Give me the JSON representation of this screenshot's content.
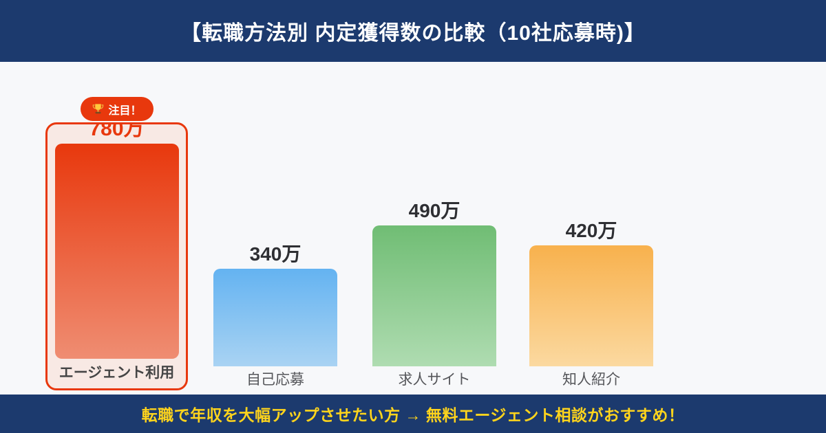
{
  "header": {
    "title": "【転職方法別 内定獲得数の比較（10社応募時)】"
  },
  "highlight": {
    "badge_icon": "trophy",
    "badge_label": "注目！",
    "highlighted_category": "エージェント利用"
  },
  "chart_data": {
    "type": "bar",
    "title": "【転職方法別 内定獲得数の比較（10社応募時)】",
    "categories": [
      "エージェント利用",
      "自己応募",
      "求人サイト",
      "知人紹介"
    ],
    "values": [
      780,
      340,
      490,
      420
    ],
    "value_labels": [
      "780万",
      "340万",
      "490万",
      "420万"
    ],
    "unit": "万",
    "ylim": [
      0,
      800
    ],
    "grid": false,
    "legend": "none",
    "axes_visible": false,
    "highlighted_index": 0
  },
  "footer": {
    "message": "転職で年収を大幅アップさせたい方 → 無料エージェント相談がおすすめ！"
  },
  "colors": {
    "banner_navy": "#1C3A6E",
    "background": "#F7F8FA",
    "accent_red": "#E8380D",
    "highlight_box_bg": "#F8E9E4",
    "footer_text_yellow": "#FFD41C",
    "value_text": "#2E2F33",
    "label_text": "#55565A",
    "bar_gradient_agent": [
      "#E8380D",
      "#EF8D72"
    ],
    "bar_gradient_self": [
      "#64B3F1",
      "#A9D3F3"
    ],
    "bar_gradient_site": [
      "#70BD74",
      "#AFDCB1"
    ],
    "bar_gradient_referral": [
      "#F8B14D",
      "#FBD9A0"
    ]
  }
}
